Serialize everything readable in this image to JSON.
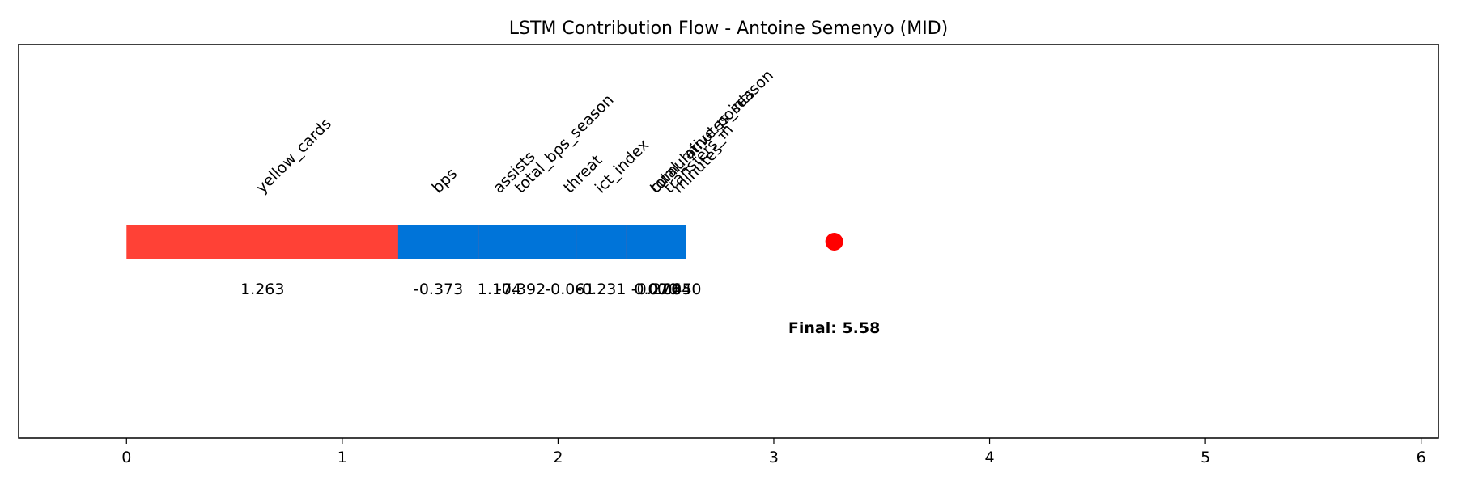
{
  "chart_data": {
    "type": "bar",
    "title": "LSTM Contribution Flow - Antoine Semenyo (MID)",
    "xlabel": "",
    "ylabel": "",
    "xlim": [
      -0.5,
      6.08
    ],
    "xticks": [
      0,
      1,
      2,
      3,
      4,
      5,
      6
    ],
    "grid": false,
    "final_label": "Final: 5.58",
    "final_marker_x": 3.28,
    "colors": {
      "positive": "#ff4136",
      "negative": "#0074d9",
      "marker": "#ff0000"
    },
    "segments": [
      {
        "feature": "yellow_cards",
        "value": 1.263,
        "value_label": "1.263"
      },
      {
        "feature": "assists",
        "value": 1.174,
        "value_label": "1.174"
      },
      {
        "feature": "total_minutes_season",
        "value": 0.07,
        "value_label": "0.070"
      },
      {
        "feature": "transfers_in",
        "value": 0.045,
        "value_label": "0.045"
      },
      {
        "feature": "minutes",
        "value": 0.04,
        "value_label": "0.040"
      },
      {
        "feature": "cumulative_points",
        "value": -0.276,
        "value_label": "-0.276"
      },
      {
        "feature": "ict_index",
        "value": -0.231,
        "value_label": "-0.231"
      },
      {
        "feature": "threat",
        "value": -0.061,
        "value_label": "-0.061"
      },
      {
        "feature": "total_bps_season",
        "value": -0.392,
        "value_label": "-0.392"
      },
      {
        "feature": "bps",
        "value": -0.373,
        "value_label": "-0.373"
      }
    ]
  }
}
